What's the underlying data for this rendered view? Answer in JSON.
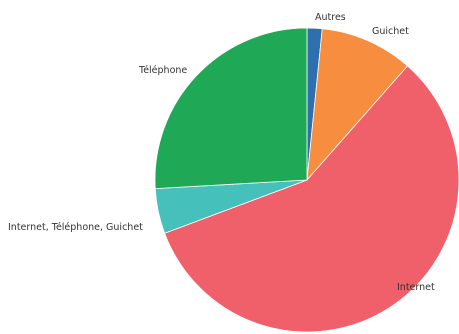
{
  "chart_data": {
    "type": "pie",
    "title": "",
    "start_angle_deg": 0,
    "direction": "clockwise",
    "legend": "none",
    "labels": [
      "Autres",
      "Guichet",
      "Internet",
      "Internet, Téléphone, Guichet",
      "Téléphone"
    ],
    "values": [
      1.6,
      9.9,
      57.8,
      4.8,
      25.9
    ],
    "colors": [
      "#2f6fb0",
      "#f78d3f",
      "#f0606a",
      "#45c0bb",
      "#1fa855"
    ]
  }
}
